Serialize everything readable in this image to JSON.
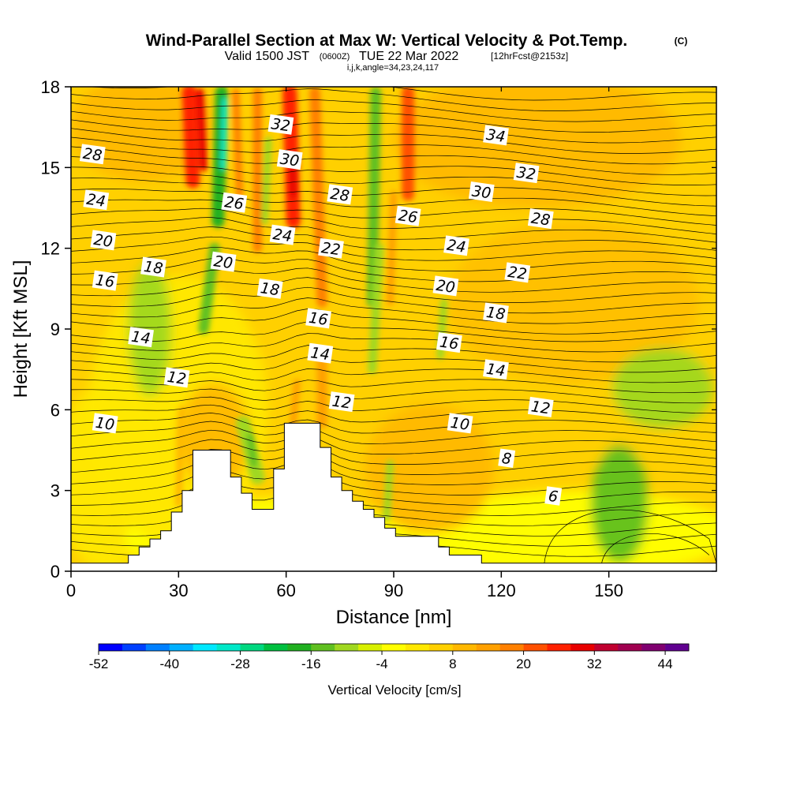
{
  "title": {
    "main": "Wind-Parallel Section at Max W: Vertical Velocity & Pot.Temp.",
    "copyright": "(C)",
    "valid_prefix": "Valid 1500 JST",
    "valid_utc": "(0600Z)",
    "valid_date": "TUE 22 Mar 2022",
    "forecast": "[12hrFcst@2153z]",
    "indices": "i,j,k,angle=34,23,24,117"
  },
  "chart_data": {
    "type": "heatmap",
    "xlabel": "Distance [nm]",
    "ylabel": "Height [Kft MSL]",
    "xlim": [
      0,
      180
    ],
    "ylim": [
      0,
      18
    ],
    "x_ticks": [
      "0",
      "30",
      "60",
      "90",
      "120",
      "150"
    ],
    "y_ticks": [
      "0",
      "3",
      "6",
      "9",
      "12",
      "15",
      "18"
    ],
    "x_tick_values": [
      0,
      30,
      60,
      90,
      120,
      150
    ],
    "y_tick_values": [
      0,
      3,
      6,
      9,
      12,
      15,
      18
    ],
    "colorbar": {
      "label": "Vertical Velocity [cm/s]",
      "tick_labels": [
        "-52",
        "-40",
        "-28",
        "-16",
        "-4",
        "8",
        "20",
        "32",
        "44"
      ],
      "tick_values": [
        -52,
        -40,
        -28,
        -16,
        -4,
        8,
        20,
        32,
        44
      ],
      "min": -52,
      "max": 48,
      "step": 4,
      "colors": [
        "#0000ff",
        "#0040ff",
        "#0080ff",
        "#00b0ff",
        "#00e8ff",
        "#00e8c8",
        "#00d880",
        "#00c040",
        "#20b020",
        "#60c020",
        "#a0d820",
        "#d8f000",
        "#ffff00",
        "#ffe800",
        "#ffd000",
        "#ffb800",
        "#ffa000",
        "#ff8000",
        "#ff5000",
        "#ff2000",
        "#e80000",
        "#c00030",
        "#a00050",
        "#800070",
        "#600090"
      ]
    },
    "theta_contour_labels": [
      {
        "text": "28",
        "x": 6,
        "y": 15.5
      },
      {
        "text": "24",
        "x": 7,
        "y": 13.8
      },
      {
        "text": "20",
        "x": 9,
        "y": 12.3
      },
      {
        "text": "16",
        "x": 9.5,
        "y": 10.8
      },
      {
        "text": "18",
        "x": 23,
        "y": 11.3
      },
      {
        "text": "14",
        "x": 19.5,
        "y": 8.7
      },
      {
        "text": "12",
        "x": 29.5,
        "y": 7.2
      },
      {
        "text": "10",
        "x": 9.5,
        "y": 5.5
      },
      {
        "text": "32",
        "x": 58.5,
        "y": 16.6
      },
      {
        "text": "30",
        "x": 61,
        "y": 15.3
      },
      {
        "text": "26",
        "x": 45.5,
        "y": 13.7
      },
      {
        "text": "24",
        "x": 59,
        "y": 12.5
      },
      {
        "text": "20",
        "x": 42.5,
        "y": 11.5
      },
      {
        "text": "18",
        "x": 55.5,
        "y": 10.5
      },
      {
        "text": "28",
        "x": 75,
        "y": 14
      },
      {
        "text": "22",
        "x": 72.5,
        "y": 12
      },
      {
        "text": "16",
        "x": 69,
        "y": 9.4
      },
      {
        "text": "14",
        "x": 69.5,
        "y": 8.1
      },
      {
        "text": "12",
        "x": 75.5,
        "y": 6.3
      },
      {
        "text": "34",
        "x": 118.5,
        "y": 16.2
      },
      {
        "text": "32",
        "x": 127,
        "y": 14.8
      },
      {
        "text": "30",
        "x": 114.5,
        "y": 14.1
      },
      {
        "text": "26",
        "x": 94,
        "y": 13.2
      },
      {
        "text": "28",
        "x": 131,
        "y": 13.1
      },
      {
        "text": "24",
        "x": 107.5,
        "y": 12.1
      },
      {
        "text": "22",
        "x": 124.5,
        "y": 11.1
      },
      {
        "text": "20",
        "x": 104.5,
        "y": 10.6
      },
      {
        "text": "18",
        "x": 118.5,
        "y": 9.6
      },
      {
        "text": "16",
        "x": 105.5,
        "y": 8.5
      },
      {
        "text": "14",
        "x": 118.5,
        "y": 7.5
      },
      {
        "text": "12",
        "x": 131,
        "y": 6.1
      },
      {
        "text": "10",
        "x": 108.5,
        "y": 5.5
      },
      {
        "text": "8",
        "x": 121.5,
        "y": 4.2
      },
      {
        "text": "6",
        "x": 134.5,
        "y": 2.8
      }
    ],
    "terrain": [
      [
        0,
        0.3
      ],
      [
        16,
        0.3
      ],
      [
        16,
        0.6
      ],
      [
        19,
        0.6
      ],
      [
        19,
        0.9
      ],
      [
        22,
        0.9
      ],
      [
        22,
        1.2
      ],
      [
        25,
        1.2
      ],
      [
        25,
        1.5
      ],
      [
        28,
        1.5
      ],
      [
        28,
        2.2
      ],
      [
        31,
        2.2
      ],
      [
        31,
        3
      ],
      [
        34,
        3
      ],
      [
        34,
        4.5
      ],
      [
        44.5,
        4.5
      ],
      [
        44.5,
        3.5
      ],
      [
        47.5,
        3.5
      ],
      [
        47.5,
        2.9
      ],
      [
        50.5,
        2.9
      ],
      [
        50.5,
        2.3
      ],
      [
        56.5,
        2.3
      ],
      [
        56.5,
        3.8
      ],
      [
        59.5,
        3.8
      ],
      [
        59.5,
        5.5
      ],
      [
        69.5,
        5.5
      ],
      [
        69.5,
        4.6
      ],
      [
        72.5,
        4.6
      ],
      [
        72.5,
        3.5
      ],
      [
        75.5,
        3.5
      ],
      [
        75.5,
        3
      ],
      [
        78.5,
        3
      ],
      [
        78.5,
        2.6
      ],
      [
        81.5,
        2.6
      ],
      [
        81.5,
        2.3
      ],
      [
        84.5,
        2.3
      ],
      [
        84.5,
        2
      ],
      [
        87.5,
        2
      ],
      [
        87.5,
        1.6
      ],
      [
        90.5,
        1.6
      ],
      [
        90.5,
        1.3
      ],
      [
        102.5,
        1.3
      ],
      [
        102.5,
        0.9
      ],
      [
        105.5,
        0.9
      ],
      [
        105.5,
        0.6
      ],
      [
        114.5,
        0.6
      ],
      [
        114.5,
        0.3
      ],
      [
        180,
        0.3
      ]
    ]
  }
}
